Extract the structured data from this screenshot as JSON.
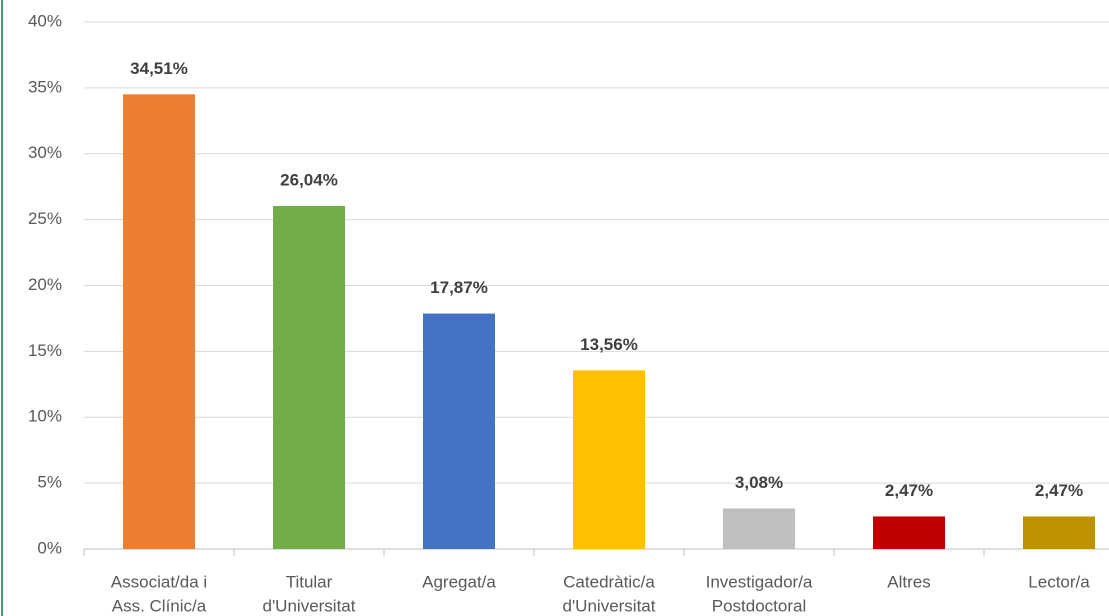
{
  "chart_data": {
    "type": "bar",
    "categories": [
      [
        "Associat/da i",
        "Ass. Clínic/a"
      ],
      [
        "Titular",
        "d'Universitat"
      ],
      [
        "Agregat/a"
      ],
      [
        "Catedràtic/a",
        "d'Universitat"
      ],
      [
        "Investigador/a",
        "Postdoctoral"
      ],
      [
        "Altres"
      ],
      [
        "Lector/a"
      ]
    ],
    "values": [
      34.51,
      26.04,
      17.87,
      13.56,
      3.08,
      2.47,
      2.47
    ],
    "value_labels": [
      "34,51%",
      "26,04%",
      "17,87%",
      "13,56%",
      "3,08%",
      "2,47%",
      "2,47%"
    ],
    "colors": [
      "#ED7D31",
      "#70AD47",
      "#4472C4",
      "#FFC000",
      "#BFBFBF",
      "#C00000",
      "#BF9000"
    ],
    "ylim": [
      0,
      40
    ],
    "yticks": [
      {
        "value": 0,
        "label": "0%"
      },
      {
        "value": 5,
        "label": "5%"
      },
      {
        "value": 10,
        "label": "10%"
      },
      {
        "value": 15,
        "label": "15%"
      },
      {
        "value": 20,
        "label": "20%"
      },
      {
        "value": 25,
        "label": "25%"
      },
      {
        "value": 30,
        "label": "30%"
      },
      {
        "value": 35,
        "label": "35%"
      },
      {
        "value": 40,
        "label": "40%"
      }
    ],
    "grid": true
  }
}
